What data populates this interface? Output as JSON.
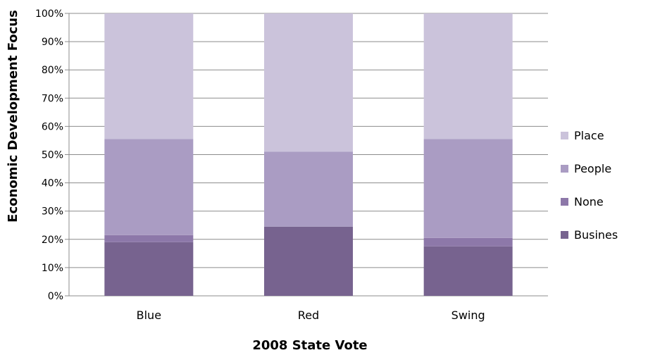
{
  "chart_data": {
    "type": "bar",
    "stacked": true,
    "categories": [
      "Blue",
      "Red",
      "Swing"
    ],
    "series": [
      {
        "name": "Business",
        "values": [
          19,
          24.5,
          17.5
        ],
        "color": "#77638F"
      },
      {
        "name": "None",
        "values": [
          2.5,
          0,
          3
        ],
        "color": "#8D78A9"
      },
      {
        "name": "People",
        "values": [
          34,
          26.5,
          35
        ],
        "color": "#AA9CC3"
      },
      {
        "name": "Place",
        "values": [
          44.5,
          49,
          44.5
        ],
        "color": "#CBC3DB"
      }
    ],
    "xlabel": "2008 State Vote",
    "ylabel": "Economic Development Focus",
    "ylim": [
      0,
      100
    ],
    "yticks": [
      "0%",
      "10%",
      "20%",
      "30%",
      "40%",
      "50%",
      "60%",
      "70%",
      "80%",
      "90%",
      "100%"
    ],
    "legend_labels": [
      "Place",
      "People",
      "None",
      "Busines"
    ],
    "legend_position": "right",
    "grid": true
  }
}
